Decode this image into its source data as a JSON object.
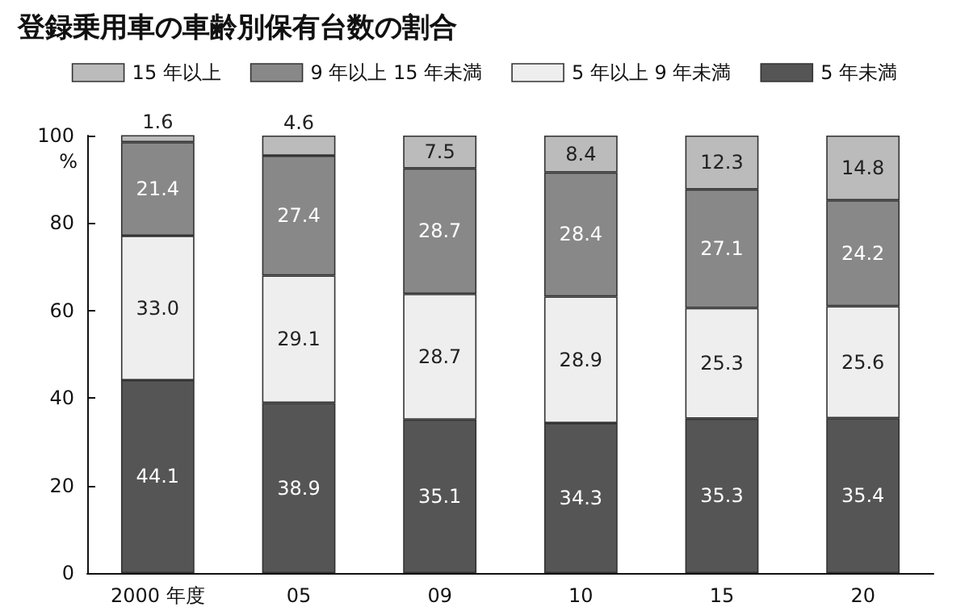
{
  "chart_data": {
    "type": "bar",
    "title": "登録乗用車の車齢別保有台数の割合",
    "ylabel": "%",
    "categories": [
      "2000 年度",
      "05",
      "09",
      "10",
      "15",
      "20"
    ],
    "stacked": true,
    "grid": false,
    "legend": "top",
    "ylim": [
      0,
      100
    ],
    "yticks": [
      0,
      20,
      40,
      60,
      80,
      100
    ],
    "series": [
      {
        "name": "5 年未満",
        "color": "#555555",
        "values": [
          44.1,
          38.9,
          35.1,
          34.3,
          35.3,
          35.4
        ],
        "value_labels": [
          "44.1",
          "38.9",
          "35.1",
          "34.3",
          "35.3",
          "35.4"
        ]
      },
      {
        "name": "5 年以上 9 年未満",
        "color": "#eeeeee",
        "values": [
          33.0,
          29.1,
          28.7,
          28.9,
          25.3,
          25.6
        ],
        "value_labels": [
          "33.0",
          "29.1",
          "28.7",
          "28.9",
          "25.3",
          "25.6"
        ]
      },
      {
        "name": "9 年以上 15 年未満",
        "color": "#888888",
        "values": [
          21.4,
          27.4,
          28.7,
          28.4,
          27.1,
          24.2
        ],
        "value_labels": [
          "21.4",
          "27.4",
          "28.7",
          "28.4",
          "27.1",
          "24.2"
        ]
      },
      {
        "name": "15 年以上",
        "color": "#bbbbbb",
        "values": [
          1.6,
          4.6,
          7.5,
          8.4,
          12.3,
          14.8
        ],
        "value_labels": [
          "1.6",
          "4.6",
          "7.5",
          "8.4",
          "12.3",
          "14.8"
        ]
      }
    ]
  }
}
